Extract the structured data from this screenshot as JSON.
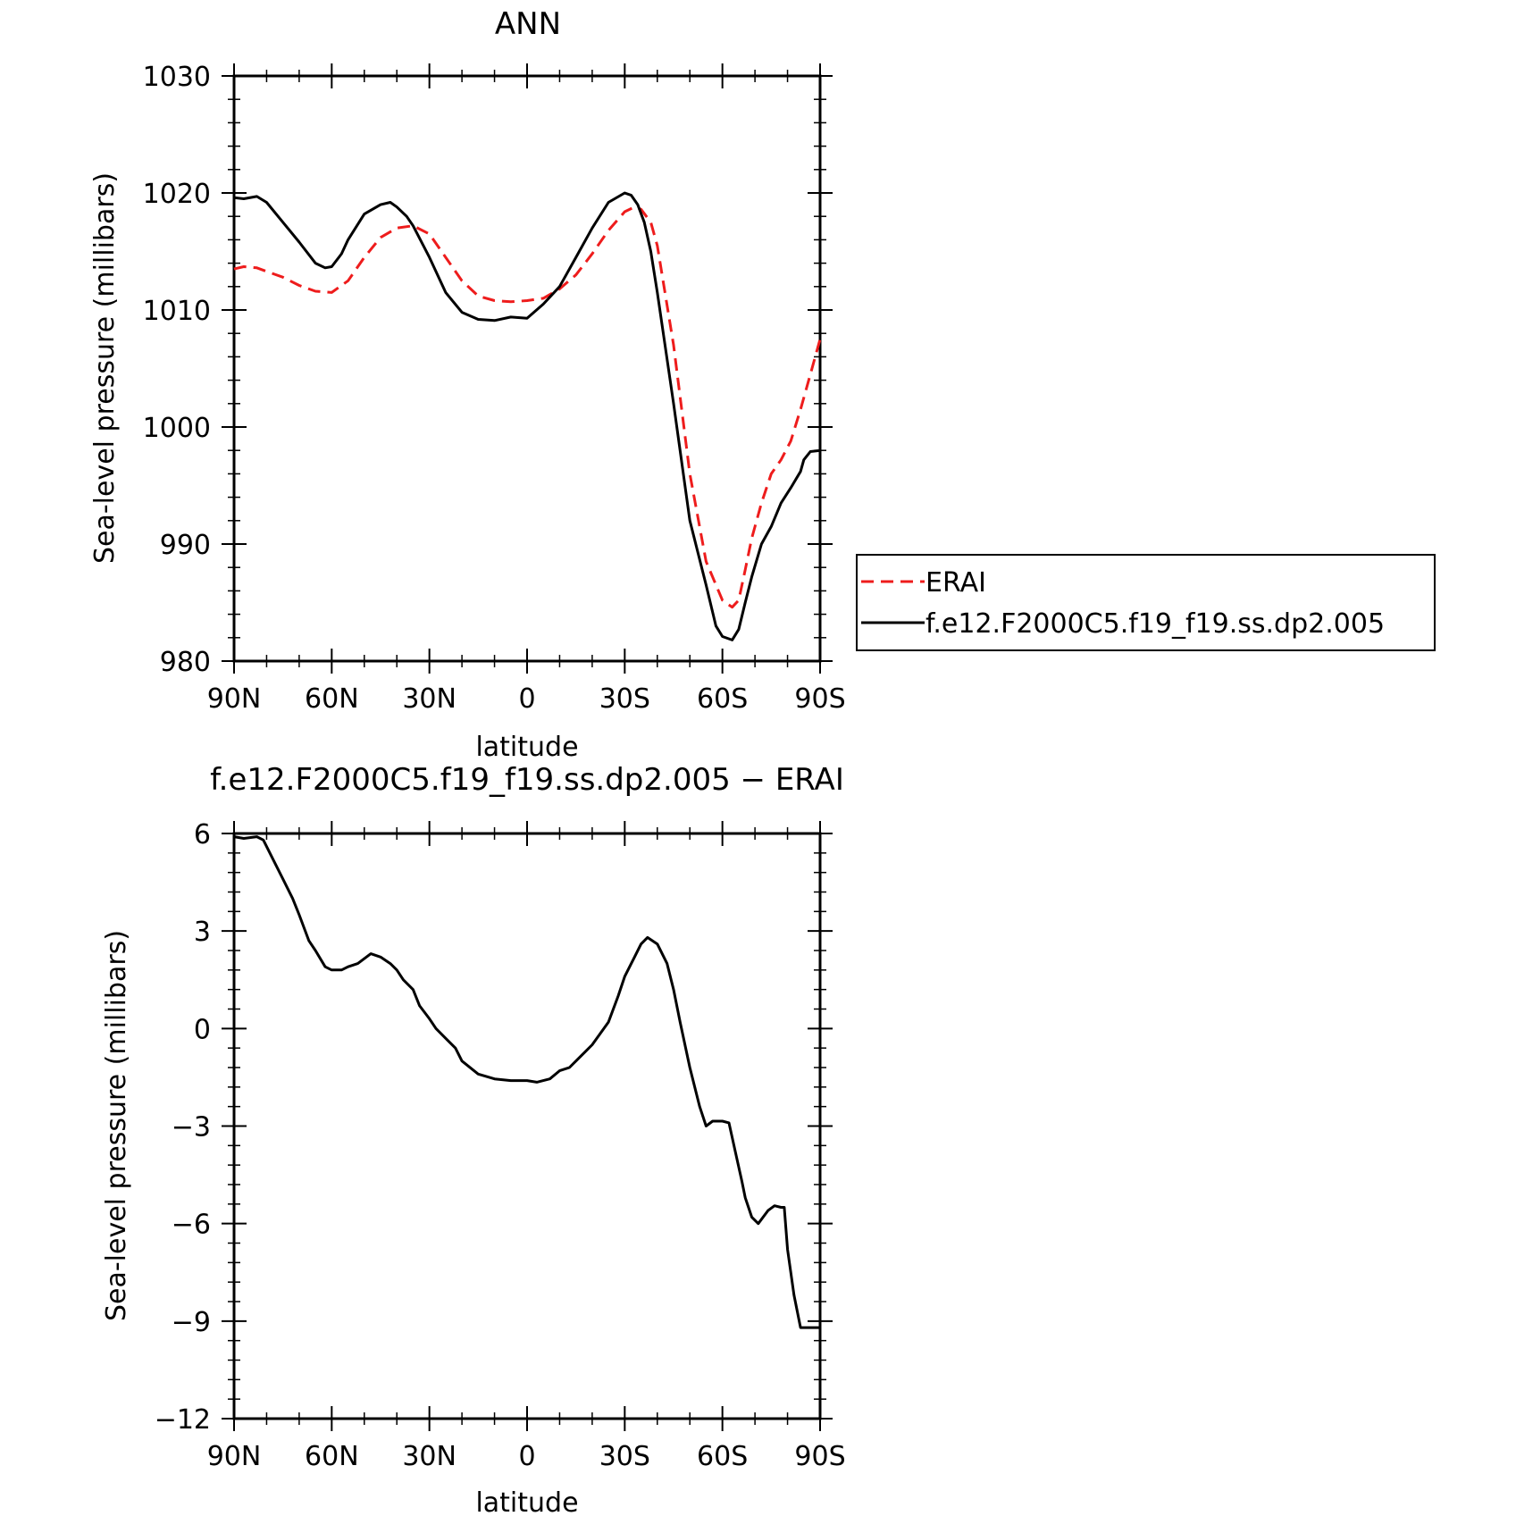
{
  "chart_data": [
    {
      "type": "line",
      "title": "ANN",
      "xlabel": "latitude",
      "ylabel": "Sea-level pressure (millibars)",
      "xlim": [
        90,
        -90
      ],
      "ylim": [
        980,
        1030
      ],
      "x_tick_values": [
        90,
        60,
        30,
        0,
        -30,
        -60,
        -90
      ],
      "x_tick_labels": [
        "90N",
        "60N",
        "30N",
        "0",
        "30S",
        "60S",
        "90S"
      ],
      "y_ticks": [
        980,
        990,
        1000,
        1010,
        1020,
        1030
      ],
      "legend_position": "right",
      "series": [
        {
          "name": "ERAI",
          "color": "#ee1c1c",
          "dash": "dashed",
          "x": [
            90,
            87,
            83,
            80,
            75,
            70,
            65,
            60,
            55,
            50,
            45,
            40,
            35,
            30,
            25,
            20,
            15,
            10,
            5,
            0,
            -5,
            -10,
            -15,
            -20,
            -25,
            -30,
            -33,
            -35,
            -38,
            -40,
            -45,
            -50,
            -55,
            -60,
            -63,
            -65,
            -67,
            -69,
            -72,
            -75,
            -78,
            -81,
            -84,
            -87,
            -90
          ],
          "y": [
            1013.5,
            1013.7,
            1013.6,
            1013.3,
            1012.8,
            1012.1,
            1011.6,
            1011.5,
            1012.5,
            1014.5,
            1016.2,
            1017,
            1017.2,
            1016.5,
            1014.5,
            1012.5,
            1011.2,
            1010.8,
            1010.7,
            1010.8,
            1011,
            1011.8,
            1013,
            1014.8,
            1016.8,
            1018.4,
            1018.8,
            1018.6,
            1017.5,
            1015.5,
            1007,
            996,
            988.5,
            985.2,
            984.6,
            985.2,
            987.8,
            990.5,
            993.5,
            996,
            997.2,
            998.8,
            1001.5,
            1004.5,
            1007.5
          ]
        },
        {
          "name": "f.e12.F2000C5.f19_f19.ss.dp2.005",
          "color": "#000000",
          "dash": "solid",
          "x": [
            90,
            87,
            83,
            80,
            75,
            70,
            65,
            62,
            60,
            57,
            55,
            50,
            45,
            42,
            40,
            37,
            35,
            30,
            25,
            20,
            15,
            10,
            5,
            0,
            -5,
            -10,
            -15,
            -20,
            -25,
            -30,
            -32,
            -34,
            -36,
            -38,
            -40,
            -45,
            -50,
            -55,
            -58,
            -60,
            -63,
            -65,
            -67,
            -69,
            -72,
            -75,
            -78,
            -81,
            -84,
            -85,
            -87,
            -90
          ],
          "y": [
            1019.6,
            1019.5,
            1019.7,
            1019.2,
            1017.5,
            1015.8,
            1014,
            1013.6,
            1013.7,
            1014.8,
            1016,
            1018.2,
            1019,
            1019.2,
            1018.8,
            1018,
            1017.2,
            1014.5,
            1011.5,
            1009.8,
            1009.2,
            1009.1,
            1009.4,
            1009.3,
            1010.5,
            1012,
            1014.5,
            1017,
            1019.2,
            1020,
            1019.8,
            1019,
            1017.5,
            1015,
            1011.5,
            1002,
            992,
            986.5,
            983,
            982.1,
            981.8,
            982.7,
            985,
            987.2,
            990,
            991.5,
            993.5,
            994.8,
            996.2,
            997.2,
            997.9,
            998
          ]
        }
      ]
    },
    {
      "type": "line",
      "title": "f.e12.F2000C5.f19_f19.ss.dp2.005 − ERAI",
      "xlabel": "latitude",
      "ylabel": "Sea-level pressure (millibars)",
      "xlim": [
        90,
        -90
      ],
      "ylim": [
        -12,
        6
      ],
      "x_tick_values": [
        90,
        60,
        30,
        0,
        -30,
        -60,
        -90
      ],
      "x_tick_labels": [
        "90N",
        "60N",
        "30N",
        "0",
        "30S",
        "60S",
        "90S"
      ],
      "y_ticks": [
        -12,
        -9,
        -6,
        -3,
        0,
        3,
        6
      ],
      "series": [
        {
          "color": "#000000",
          "dash": "solid",
          "x": [
            90,
            87,
            83,
            81,
            78,
            75,
            72,
            70,
            67,
            65,
            62,
            60,
            57,
            55,
            52,
            48,
            45,
            42,
            40,
            38,
            35,
            33,
            30,
            28,
            25,
            22,
            20,
            15,
            10,
            5,
            0,
            -3,
            -5,
            -7,
            -10,
            -13,
            -15,
            -18,
            -20,
            -25,
            -28,
            -30,
            -33,
            -35,
            -37,
            -40,
            -43,
            -45,
            -47,
            -50,
            -53,
            -55,
            -57,
            -60,
            -62,
            -64,
            -66,
            -67,
            -69,
            -71,
            -74,
            -76,
            -78,
            -79,
            -80,
            -82,
            -84,
            -85,
            -86,
            -88,
            -90
          ],
          "y": [
            5.9,
            5.85,
            5.9,
            5.8,
            5.2,
            4.6,
            4.0,
            3.5,
            2.7,
            2.4,
            1.9,
            1.8,
            1.8,
            1.9,
            2.0,
            2.3,
            2.2,
            2.0,
            1.8,
            1.5,
            1.2,
            0.7,
            0.3,
            0.0,
            -0.3,
            -0.6,
            -1.0,
            -1.4,
            -1.55,
            -1.6,
            -1.6,
            -1.65,
            -1.6,
            -1.55,
            -1.3,
            -1.2,
            -1.0,
            -0.7,
            -0.5,
            0.2,
            1.0,
            1.6,
            2.2,
            2.6,
            2.8,
            2.6,
            2.0,
            1.2,
            0.2,
            -1.2,
            -2.4,
            -3.0,
            -2.85,
            -2.85,
            -2.9,
            -3.8,
            -4.7,
            -5.2,
            -5.8,
            -6.0,
            -5.6,
            -5.45,
            -5.5,
            -5.5,
            -6.8,
            -8.2,
            -9.2,
            -9.2,
            -9.2,
            -9.2,
            -9.2
          ]
        }
      ]
    }
  ]
}
